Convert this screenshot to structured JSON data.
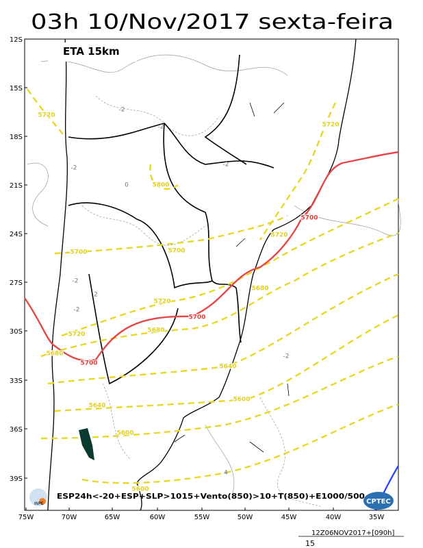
{
  "title": "03h 10/Nov/2017 sexta-feira",
  "model": "ETA 15km",
  "lat_labels": [
    "12S",
    "15S",
    "18S",
    "21S",
    "24S",
    "27S",
    "30S",
    "33S",
    "36S",
    "39S"
  ],
  "lon_labels": [
    "75W",
    "70W",
    "65W",
    "60W",
    "55W",
    "50W",
    "45W",
    "40W",
    "35W"
  ],
  "contour_labels": [
    "5720",
    "5720",
    "5800",
    "5700",
    "5720",
    "5700",
    "5700",
    "5680",
    "5720",
    "5700",
    "5720",
    "5680",
    "5680",
    "5700",
    "5640",
    "5600",
    "5640",
    "5600",
    "5600"
  ],
  "field_labels": [
    "-2",
    "-2",
    "0",
    "-2",
    "-2",
    "-2",
    "2",
    "-2",
    "4",
    "-2"
  ],
  "caption": "ESP24h<-20+ESP+SLP>1015+Vento(850)>10+T(850)+E1000/500",
  "run": "12Z06NOV2017+[090h]",
  "footer_number": "15",
  "logos": [
    "INPE",
    "CPTEC"
  ]
}
